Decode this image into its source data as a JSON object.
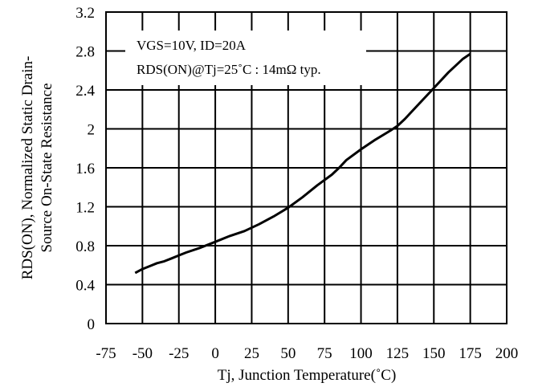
{
  "chart_data": {
    "type": "line",
    "xlabel": "Tj, Junction Temperature(˚C)",
    "ylabel_line1": "RDS(ON), Normalized Static Drain-",
    "ylabel_line2": "Source On-State Resistance",
    "xlim": [
      -75,
      200
    ],
    "ylim": [
      0,
      3.2
    ],
    "x_ticks": [
      "-75",
      "-50",
      "-25",
      "0",
      "25",
      "50",
      "75",
      "100",
      "125",
      "150",
      "175",
      "200"
    ],
    "y_ticks": [
      "0",
      "0.4",
      "0.8",
      "1.2",
      "1.6",
      "2",
      "2.4",
      "2.8",
      "3.2"
    ],
    "grid": true,
    "annotation": {
      "line1": "VGS=10V, ID=20A",
      "line2": "RDS(ON)@Tj=25˚C : 14mΩ typ."
    },
    "series": [
      {
        "x": [
          -55,
          -50,
          -45,
          -40,
          -35,
          -30,
          -25,
          -20,
          -10,
          0,
          10,
          20,
          30,
          40,
          50,
          60,
          70,
          80,
          85,
          90,
          100,
          110,
          120,
          125,
          130,
          140,
          150,
          160,
          170,
          175
        ],
        "values": [
          0.52,
          0.56,
          0.59,
          0.62,
          0.64,
          0.67,
          0.7,
          0.73,
          0.78,
          0.84,
          0.9,
          0.95,
          1.02,
          1.1,
          1.19,
          1.3,
          1.42,
          1.53,
          1.6,
          1.68,
          1.79,
          1.89,
          1.98,
          2.03,
          2.1,
          2.26,
          2.42,
          2.58,
          2.72,
          2.77
        ]
      }
    ]
  }
}
